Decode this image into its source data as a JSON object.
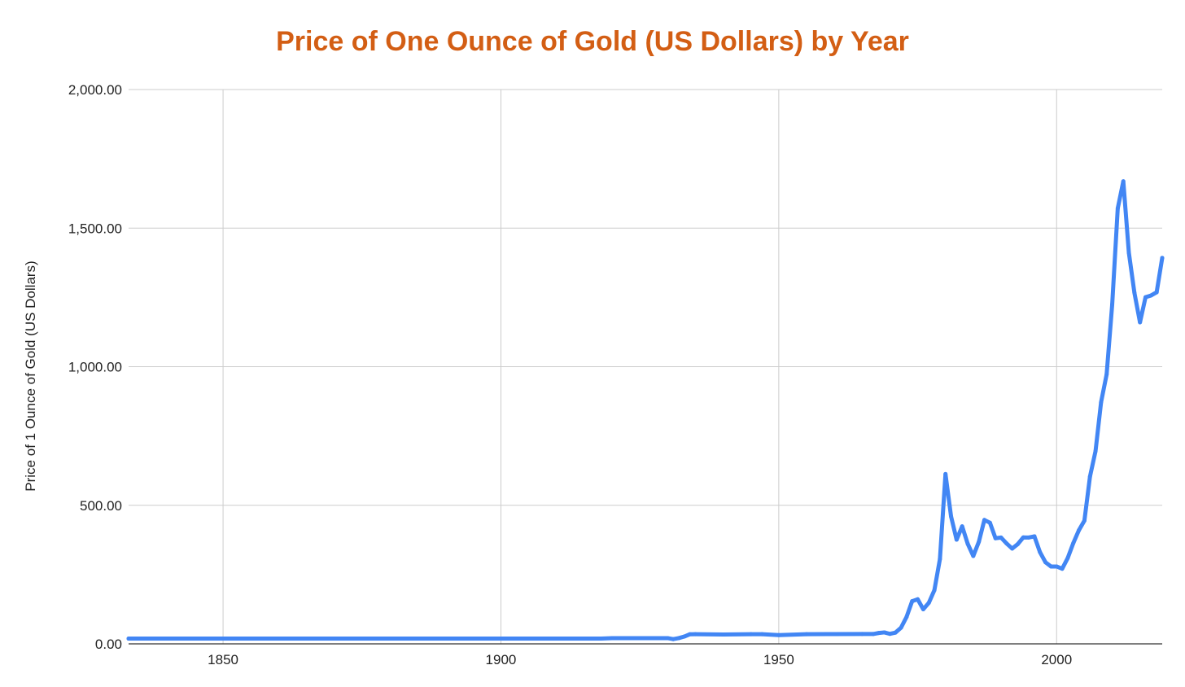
{
  "colors": {
    "title": "#D35E14",
    "series": "#4286F4",
    "grid": "#CCCCCC",
    "text": "#222222"
  },
  "chart_data": {
    "type": "line",
    "title": "Price of One Ounce of Gold (US Dollars) by Year",
    "xlabel": "",
    "ylabel": "Price of 1 Ounce of Gold (US Dollars)",
    "xlim": [
      1833,
      2019
    ],
    "ylim": [
      0,
      2000
    ],
    "x_ticks": [
      {
        "value": 1850,
        "label": "1850"
      },
      {
        "value": 1900,
        "label": "1900"
      },
      {
        "value": 1950,
        "label": "1950"
      },
      {
        "value": 2000,
        "label": "2000"
      }
    ],
    "y_ticks": [
      {
        "value": 0,
        "label": "0.00"
      },
      {
        "value": 500,
        "label": "500.00"
      },
      {
        "value": 1000,
        "label": "1,000.00"
      },
      {
        "value": 1500,
        "label": "1,500.00"
      },
      {
        "value": 2000,
        "label": "2,000.00"
      }
    ],
    "grid": true,
    "legend": "none",
    "series": [
      {
        "name": "Price of 1 Ounce of Gold (US Dollars)",
        "x": [
          1833,
          1850,
          1900,
          1916,
          1918,
          1920,
          1925,
          1930,
          1931,
          1932,
          1933,
          1934,
          1935,
          1940,
          1945,
          1947,
          1950,
          1955,
          1960,
          1965,
          1967,
          1968,
          1969,
          1970,
          1971,
          1972,
          1973,
          1974,
          1975,
          1976,
          1977,
          1978,
          1979,
          1980,
          1981,
          1982,
          1983,
          1984,
          1985,
          1986,
          1987,
          1988,
          1989,
          1990,
          1991,
          1992,
          1993,
          1994,
          1995,
          1996,
          1997,
          1998,
          1999,
          2000,
          2001,
          2002,
          2003,
          2004,
          2005,
          2006,
          2007,
          2008,
          2009,
          2010,
          2011,
          2012,
          2013,
          2014,
          2015,
          2016,
          2017,
          2018,
          2019
        ],
        "values": [
          18.93,
          18.93,
          18.96,
          18.99,
          18.99,
          20.68,
          20.64,
          20.65,
          17.06,
          20.69,
          26.33,
          34.69,
          34.84,
          33.85,
          34.71,
          34.71,
          31.69,
          35.03,
          35.27,
          35.5,
          35.5,
          39.31,
          41.28,
          36.02,
          40.62,
          58.42,
          97.39,
          154.0,
          160.86,
          124.74,
          147.84,
          193.4,
          306.0,
          612.56,
          460.0,
          375.91,
          424.0,
          361.0,
          317.0,
          368.0,
          447.0,
          437.0,
          381.0,
          383.51,
          362.11,
          343.82,
          359.77,
          384.0,
          383.79,
          387.81,
          331.02,
          294.24,
          278.98,
          279.11,
          271.04,
          309.73,
          363.38,
          409.72,
          444.74,
          603.46,
          695.39,
          871.96,
          972.35,
          1224.53,
          1571.52,
          1668.98,
          1411.23,
          1266.4,
          1160.06,
          1250.74,
          1257.12,
          1268.49,
          1392.6
        ]
      }
    ]
  }
}
